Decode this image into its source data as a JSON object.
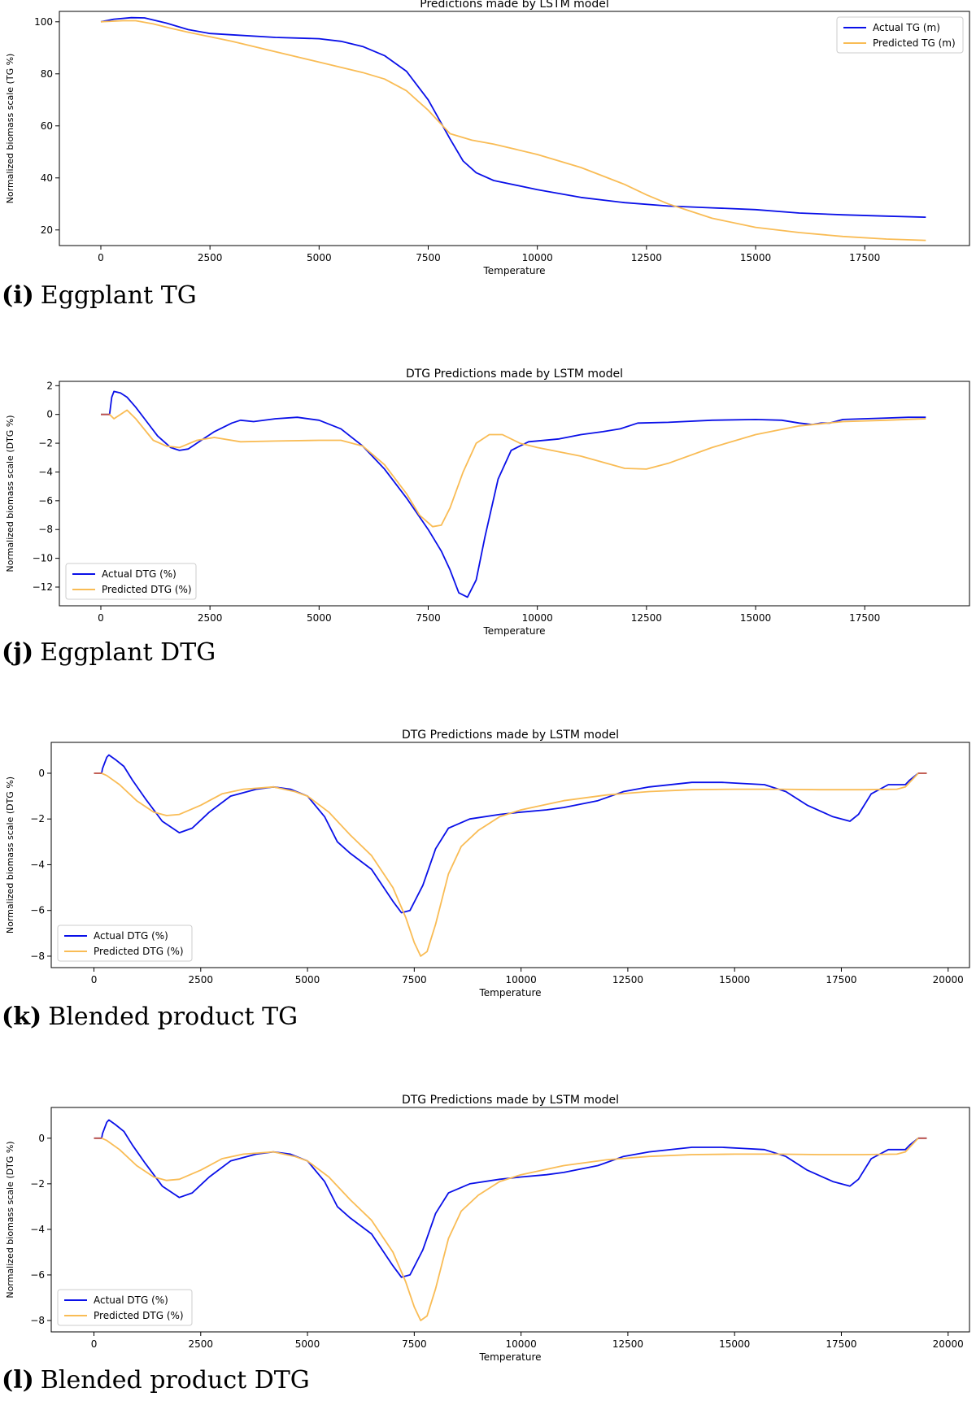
{
  "colors": {
    "actual": "#0a10e8",
    "predicted": "#f9bc55",
    "tail": "#c0504d",
    "axis": "#000000"
  },
  "panels": [
    {
      "caption": {
        "letter": "(i)",
        "text": "Eggplant TG"
      },
      "chart_data": {
        "type": "line",
        "title": "Predictions made by LSTM model",
        "xlabel": "Temperature",
        "ylabel": "Normalized biomass scale (TG %)",
        "xlim": [
          -950,
          19900
        ],
        "ylim": [
          14,
          104
        ],
        "xticks": [
          0,
          2500,
          5000,
          7500,
          10000,
          12500,
          15000,
          17500
        ],
        "xtick_labels": [
          "0",
          "2500",
          "5000",
          "7500",
          "10000",
          "12500",
          "15000",
          "17500"
        ],
        "yticks": [
          20,
          40,
          60,
          80,
          100
        ],
        "ytick_labels": [
          "20",
          "40",
          "60",
          "80",
          "100"
        ],
        "legend": {
          "position": "top-right"
        },
        "series": [
          {
            "name": "Actual TG (m)",
            "color_key": "actual",
            "x": [
              0,
              300,
              700,
              1000,
              1500,
              2000,
              2500,
              3000,
              4000,
              5000,
              5500,
              6000,
              6500,
              7000,
              7500,
              8000,
              8300,
              8600,
              9000,
              10000,
              11000,
              12000,
              13000,
              14000,
              15000,
              16000,
              17000,
              18000,
              18900
            ],
            "y": [
              100,
              101,
              101.6,
              101.5,
              99.5,
              97,
              95.5,
              95,
              94,
              93.5,
              92.5,
              90.5,
              87,
              81,
              70,
              55,
              46.5,
              42,
              39,
              35.5,
              32.5,
              30.5,
              29.2,
              28.5,
              27.8,
              26.5,
              25.8,
              25.3,
              24.9
            ]
          },
          {
            "name": "Predicted TG (m)",
            "color_key": "predicted",
            "x": [
              0,
              500,
              800,
              1200,
              1600,
              2000,
              3000,
              4000,
              5000,
              6000,
              6500,
              7000,
              7500,
              8000,
              8500,
              9000,
              10000,
              11000,
              12000,
              12500,
              13000,
              14000,
              15000,
              16000,
              17000,
              18000,
              18900
            ],
            "y": [
              100,
              100.4,
              100.4,
              99.2,
              97.5,
              96,
              92.5,
              88.5,
              84.5,
              80.5,
              78,
              73.5,
              66,
              57,
              54.5,
              53,
              49,
              44,
              37.5,
              33.5,
              30,
              24.5,
              21,
              19,
              17.5,
              16.5,
              16
            ]
          }
        ]
      }
    },
    {
      "caption": {
        "letter": "(j)",
        "text": "Eggplant DTG"
      },
      "chart_data": {
        "type": "line",
        "title": "DTG Predictions made by LSTM model",
        "xlabel": "Temperature",
        "ylabel": "Normalized biomass scale (DTG %)",
        "xlim": [
          -950,
          19900
        ],
        "ylim": [
          -13.3,
          2.3
        ],
        "xticks": [
          0,
          2500,
          5000,
          7500,
          10000,
          12500,
          15000,
          17500
        ],
        "xtick_labels": [
          "0",
          "2500",
          "5000",
          "7500",
          "10000",
          "12500",
          "15000",
          "17500"
        ],
        "yticks": [
          2,
          0,
          -2,
          -4,
          -6,
          -8,
          -10,
          -12
        ],
        "ytick_labels": [
          "2",
          "0",
          "−2",
          "−4",
          "−6",
          "−8",
          "−10",
          "−12"
        ],
        "legend": {
          "position": "bottom-left"
        },
        "series": [
          {
            "name": "Actual DTG (%)",
            "color_key": "actual",
            "x": [
              0,
              200,
              250,
              300,
              450,
              600,
              800,
              1000,
              1300,
              1600,
              1800,
              2000,
              2300,
              2600,
              3000,
              3200,
              3500,
              4000,
              4500,
              5000,
              5500,
              6000,
              6500,
              7000,
              7500,
              7800,
              8000,
              8200,
              8400,
              8600,
              8800,
              9100,
              9400,
              9800,
              10500,
              11000,
              11500,
              11900,
              12300,
              13000,
              14000,
              15000,
              15600,
              16000,
              16300,
              16500,
              16700,
              17000,
              17500,
              18000,
              18500,
              18900
            ],
            "y": [
              0,
              0,
              1.2,
              1.6,
              1.5,
              1.2,
              0.5,
              -0.3,
              -1.5,
              -2.3,
              -2.5,
              -2.4,
              -1.8,
              -1.2,
              -0.6,
              -0.4,
              -0.5,
              -0.3,
              -0.2,
              -0.4,
              -1.0,
              -2.2,
              -3.8,
              -5.8,
              -8.0,
              -9.5,
              -10.8,
              -12.4,
              -12.7,
              -11.5,
              -8.5,
              -4.5,
              -2.5,
              -1.9,
              -1.7,
              -1.4,
              -1.2,
              -1.0,
              -0.6,
              -0.55,
              -0.4,
              -0.35,
              -0.4,
              -0.6,
              -0.7,
              -0.6,
              -0.6,
              -0.35,
              -0.3,
              -0.25,
              -0.2,
              -0.2
            ]
          },
          {
            "name": "Predicted DTG (%)",
            "color_key": "predicted",
            "x": [
              0,
              200,
              300,
              600,
              800,
              1200,
              1500,
              1800,
              2200,
              2600,
              3200,
              4000,
              5000,
              5500,
              6000,
              6500,
              7000,
              7300,
              7600,
              7800,
              8000,
              8300,
              8600,
              8900,
              9200,
              9600,
              10000,
              11000,
              12000,
              12500,
              13000,
              14000,
              15000,
              16000,
              17000,
              18000,
              18900
            ],
            "y": [
              0,
              0,
              -0.3,
              0.3,
              -0.3,
              -1.8,
              -2.2,
              -2.3,
              -1.8,
              -1.6,
              -1.9,
              -1.85,
              -1.8,
              -1.8,
              -2.2,
              -3.5,
              -5.5,
              -7.0,
              -7.8,
              -7.7,
              -6.5,
              -4.0,
              -2.0,
              -1.4,
              -1.4,
              -2.0,
              -2.3,
              -2.9,
              -3.75,
              -3.8,
              -3.4,
              -2.3,
              -1.4,
              -0.8,
              -0.5,
              -0.4,
              -0.3
            ]
          }
        ]
      }
    },
    {
      "caption": {
        "letter": "(k)",
        "text": "Blended product TG"
      },
      "chart_data": {
        "type": "line",
        "title": "DTG Predictions made by LSTM model",
        "xlabel": "Temperature",
        "ylabel": "Normalized biomass scale (DTG %)",
        "xlim": [
          -1000,
          20500
        ],
        "ylim": [
          -8.5,
          1.35
        ],
        "xticks": [
          0,
          2500,
          5000,
          7500,
          10000,
          12500,
          15000,
          17500,
          20000
        ],
        "xtick_labels": [
          "0",
          "2500",
          "5000",
          "7500",
          "10000",
          "12500",
          "15000",
          "17500",
          "20000"
        ],
        "yticks": [
          0,
          -2,
          -4,
          -6,
          -8
        ],
        "ytick_labels": [
          "0",
          "−2",
          "−4",
          "−6",
          "−8"
        ],
        "legend": {
          "position": "bottom-left"
        },
        "series": [
          {
            "name": "Actual DTG (%)",
            "color_key": "actual",
            "x": [
              0,
              180,
              200,
              300,
              350,
              500,
              700,
              900,
              1200,
              1600,
              2000,
              2300,
              2700,
              3200,
              3800,
              4200,
              4600,
              5000,
              5400,
              5700,
              6000,
              6500,
              7000,
              7200,
              7400,
              7700,
              8000,
              8300,
              8800,
              9500,
              10000,
              10600,
              11000,
              11800,
              12400,
              13000,
              14000,
              14700,
              15200,
              15700,
              16200,
              16700,
              17300,
              17700,
              17900,
              18200,
              18600,
              19000,
              19100,
              19300,
              19500
            ],
            "y": [
              0,
              0,
              0.2,
              0.7,
              0.8,
              0.6,
              0.3,
              -0.3,
              -1.1,
              -2.1,
              -2.6,
              -2.4,
              -1.7,
              -1.0,
              -0.7,
              -0.6,
              -0.7,
              -1.0,
              -1.9,
              -3.0,
              -3.5,
              -4.2,
              -5.6,
              -6.1,
              -6.0,
              -4.9,
              -3.3,
              -2.4,
              -2.0,
              -1.8,
              -1.7,
              -1.6,
              -1.5,
              -1.2,
              -0.8,
              -0.6,
              -0.4,
              -0.4,
              -0.45,
              -0.5,
              -0.8,
              -1.4,
              -1.9,
              -2.1,
              -1.8,
              -0.9,
              -0.5,
              -0.5,
              -0.3,
              0,
              0
            ]
          },
          {
            "name": "Predicted DTG (%)",
            "color_key": "predicted",
            "x": [
              0,
              180,
              300,
              600,
              1000,
              1400,
              1700,
              2000,
              2500,
              3000,
              3500,
              4200,
              4700,
              5000,
              5500,
              6000,
              6500,
              7000,
              7300,
              7500,
              7650,
              7800,
              8000,
              8300,
              8600,
              9000,
              9500,
              10000,
              11000,
              12000,
              13000,
              14000,
              15000,
              16000,
              17000,
              18000,
              18800,
              19000,
              19300,
              19500
            ],
            "y": [
              0,
              0,
              -0.1,
              -0.5,
              -1.2,
              -1.7,
              -1.85,
              -1.8,
              -1.4,
              -0.9,
              -0.7,
              -0.6,
              -0.8,
              -1.0,
              -1.7,
              -2.7,
              -3.6,
              -5.0,
              -6.3,
              -7.4,
              -8.0,
              -7.8,
              -6.6,
              -4.4,
              -3.2,
              -2.5,
              -1.9,
              -1.6,
              -1.2,
              -0.95,
              -0.8,
              -0.72,
              -0.7,
              -0.7,
              -0.72,
              -0.72,
              -0.7,
              -0.6,
              0,
              0
            ]
          }
        ]
      }
    },
    {
      "caption": {
        "letter": "(l)",
        "text": "Blended product DTG"
      },
      "chart_data": {
        "type": "line",
        "title": "DTG Predictions made by LSTM model",
        "xlabel": "Temperature",
        "ylabel": "Normalized biomass scale (DTG %)",
        "xlim": [
          -1000,
          20500
        ],
        "ylim": [
          -8.5,
          1.35
        ],
        "xticks": [
          0,
          2500,
          5000,
          7500,
          10000,
          12500,
          15000,
          17500,
          20000
        ],
        "xtick_labels": [
          "0",
          "2500",
          "5000",
          "7500",
          "10000",
          "12500",
          "15000",
          "17500",
          "20000"
        ],
        "yticks": [
          0,
          -2,
          -4,
          -6,
          -8
        ],
        "ytick_labels": [
          "0",
          "−2",
          "−4",
          "−6",
          "−8"
        ],
        "legend": {
          "position": "bottom-left"
        },
        "series": [
          {
            "name": "Actual DTG (%)",
            "color_key": "actual",
            "x": [
              0,
              180,
              200,
              300,
              350,
              500,
              700,
              900,
              1200,
              1600,
              2000,
              2300,
              2700,
              3200,
              3800,
              4200,
              4600,
              5000,
              5400,
              5700,
              6000,
              6500,
              7000,
              7200,
              7400,
              7700,
              8000,
              8300,
              8800,
              9500,
              10000,
              10600,
              11000,
              11800,
              12400,
              13000,
              14000,
              14700,
              15200,
              15700,
              16200,
              16700,
              17300,
              17700,
              17900,
              18200,
              18600,
              19000,
              19100,
              19300,
              19500
            ],
            "y": [
              0,
              0,
              0.2,
              0.7,
              0.8,
              0.6,
              0.3,
              -0.3,
              -1.1,
              -2.1,
              -2.6,
              -2.4,
              -1.7,
              -1.0,
              -0.7,
              -0.6,
              -0.7,
              -1.0,
              -1.9,
              -3.0,
              -3.5,
              -4.2,
              -5.6,
              -6.1,
              -6.0,
              -4.9,
              -3.3,
              -2.4,
              -2.0,
              -1.8,
              -1.7,
              -1.6,
              -1.5,
              -1.2,
              -0.8,
              -0.6,
              -0.4,
              -0.4,
              -0.45,
              -0.5,
              -0.8,
              -1.4,
              -1.9,
              -2.1,
              -1.8,
              -0.9,
              -0.5,
              -0.5,
              -0.3,
              0,
              0
            ]
          },
          {
            "name": "Predicted DTG (%)",
            "color_key": "predicted",
            "x": [
              0,
              180,
              300,
              600,
              1000,
              1400,
              1700,
              2000,
              2500,
              3000,
              3500,
              4200,
              4700,
              5000,
              5500,
              6000,
              6500,
              7000,
              7300,
              7500,
              7650,
              7800,
              8000,
              8300,
              8600,
              9000,
              9500,
              10000,
              11000,
              12000,
              13000,
              14000,
              15000,
              16000,
              17000,
              18000,
              18800,
              19000,
              19300,
              19500
            ],
            "y": [
              0,
              0,
              -0.1,
              -0.5,
              -1.2,
              -1.7,
              -1.85,
              -1.8,
              -1.4,
              -0.9,
              -0.7,
              -0.6,
              -0.8,
              -1.0,
              -1.7,
              -2.7,
              -3.6,
              -5.0,
              -6.3,
              -7.4,
              -8.0,
              -7.8,
              -6.6,
              -4.4,
              -3.2,
              -2.5,
              -1.9,
              -1.6,
              -1.2,
              -0.95,
              -0.8,
              -0.72,
              -0.7,
              -0.7,
              -0.72,
              -0.72,
              -0.7,
              -0.6,
              0,
              0
            ]
          }
        ]
      }
    }
  ]
}
